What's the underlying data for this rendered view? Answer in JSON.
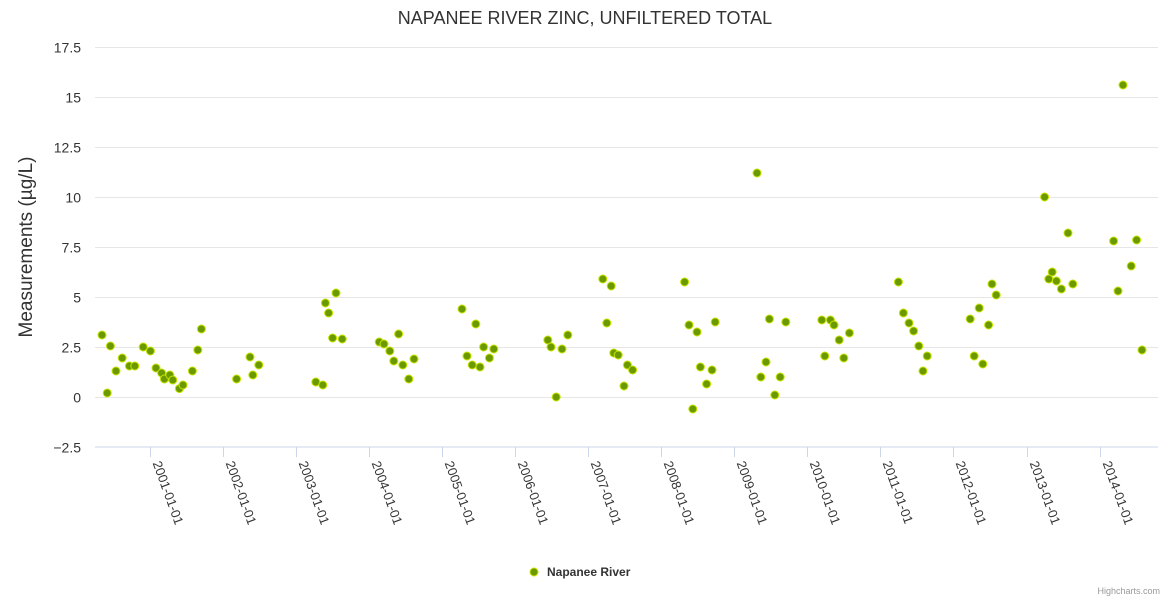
{
  "chart_data": {
    "type": "scatter",
    "title": "NAPANEE RIVER ZINC, UNFILTERED TOTAL",
    "xlabel": "",
    "ylabel": "Measurements (µg/L)",
    "ylim": [
      -2.5,
      17.5
    ],
    "yticks": [
      "−2.5",
      "0",
      "2.5",
      "5",
      "7.5",
      "10",
      "12.5",
      "15",
      "17.5"
    ],
    "ytick_values": [
      -2.5,
      0,
      2.5,
      5,
      7.5,
      10,
      12.5,
      15,
      17.5
    ],
    "xlim": [
      "2000-04-01",
      "2014-10-20"
    ],
    "xticks": [
      "2001-01-01",
      "2002-01-01",
      "2003-01-01",
      "2004-01-01",
      "2005-01-01",
      "2006-01-01",
      "2007-01-01",
      "2008-01-01",
      "2009-01-01",
      "2010-01-01",
      "2011-01-01",
      "2012-01-01",
      "2013-01-01",
      "2014-01-01"
    ],
    "grid": true,
    "legend_position": "bottom-center",
    "color": "#6a9a00",
    "outline_color": "#c8e400",
    "series": [
      {
        "name": "Napanee River",
        "points": [
          [
            "2000-05-06",
            3.1
          ],
          [
            "2000-06-01",
            0.2
          ],
          [
            "2000-06-17",
            2.55
          ],
          [
            "2000-07-15",
            1.3
          ],
          [
            "2000-08-15",
            1.95
          ],
          [
            "2000-09-20",
            1.55
          ],
          [
            "2000-10-17",
            1.55
          ],
          [
            "2000-11-28",
            2.5
          ],
          [
            "2001-01-03",
            2.3
          ],
          [
            "2001-01-31",
            1.45
          ],
          [
            "2001-02-28",
            1.2
          ],
          [
            "2001-03-14",
            0.9
          ],
          [
            "2001-04-10",
            1.1
          ],
          [
            "2001-04-25",
            0.85
          ],
          [
            "2001-05-28",
            0.42
          ],
          [
            "2001-06-15",
            0.6
          ],
          [
            "2001-08-01",
            1.3
          ],
          [
            "2001-08-28",
            2.35
          ],
          [
            "2001-09-15",
            3.4
          ],
          [
            "2002-03-10",
            0.9
          ],
          [
            "2002-05-16",
            2.0
          ],
          [
            "2002-05-30",
            1.1
          ],
          [
            "2002-06-29",
            1.6
          ],
          [
            "2003-04-10",
            0.75
          ],
          [
            "2003-05-15",
            0.6
          ],
          [
            "2003-05-28",
            4.7
          ],
          [
            "2003-06-13",
            4.2
          ],
          [
            "2003-07-03",
            2.95
          ],
          [
            "2003-07-20",
            5.2
          ],
          [
            "2003-08-20",
            2.9
          ],
          [
            "2004-02-21",
            2.75
          ],
          [
            "2004-03-16",
            2.65
          ],
          [
            "2004-04-14",
            2.3
          ],
          [
            "2004-05-04",
            1.8
          ],
          [
            "2004-05-28",
            3.15
          ],
          [
            "2004-06-18",
            1.6
          ],
          [
            "2004-07-18",
            0.9
          ],
          [
            "2004-08-13",
            1.9
          ],
          [
            "2005-04-10",
            4.4
          ],
          [
            "2005-05-05",
            2.05
          ],
          [
            "2005-05-31",
            1.6
          ],
          [
            "2005-06-18",
            3.65
          ],
          [
            "2005-07-09",
            1.5
          ],
          [
            "2005-07-27",
            2.5
          ],
          [
            "2005-08-25",
            1.95
          ],
          [
            "2005-09-16",
            2.4
          ],
          [
            "2006-06-13",
            2.85
          ],
          [
            "2006-06-29",
            2.5
          ],
          [
            "2006-07-25",
            0.0
          ],
          [
            "2006-08-23",
            2.4
          ],
          [
            "2006-09-21",
            3.1
          ],
          [
            "2007-03-15",
            5.9
          ],
          [
            "2007-04-04",
            3.7
          ],
          [
            "2007-04-26",
            5.55
          ],
          [
            "2007-05-09",
            2.2
          ],
          [
            "2007-05-31",
            2.1
          ],
          [
            "2007-06-29",
            0.55
          ],
          [
            "2007-07-16",
            1.6
          ],
          [
            "2007-08-11",
            1.35
          ],
          [
            "2008-04-27",
            5.75
          ],
          [
            "2008-05-19",
            3.6
          ],
          [
            "2008-06-07",
            -0.6
          ],
          [
            "2008-06-28",
            3.25
          ],
          [
            "2008-07-15",
            1.5
          ],
          [
            "2008-08-15",
            0.65
          ],
          [
            "2008-09-11",
            1.35
          ],
          [
            "2008-09-27",
            3.75
          ],
          [
            "2009-04-24",
            11.2
          ],
          [
            "2009-05-13",
            1.0
          ],
          [
            "2009-06-08",
            1.75
          ],
          [
            "2009-06-25",
            3.9
          ],
          [
            "2009-07-22",
            0.1
          ],
          [
            "2009-08-18",
            1.0
          ],
          [
            "2009-09-15",
            3.75
          ],
          [
            "2010-03-14",
            3.85
          ],
          [
            "2010-03-29",
            2.05
          ],
          [
            "2010-04-26",
            3.85
          ],
          [
            "2010-05-14",
            3.6
          ],
          [
            "2010-06-09",
            2.85
          ],
          [
            "2010-07-02",
            1.95
          ],
          [
            "2010-07-30",
            3.2
          ],
          [
            "2011-04-01",
            5.75
          ],
          [
            "2011-04-26",
            4.2
          ],
          [
            "2011-05-24",
            3.7
          ],
          [
            "2011-06-16",
            3.3
          ],
          [
            "2011-07-12",
            2.55
          ],
          [
            "2011-08-02",
            1.3
          ],
          [
            "2011-08-23",
            2.05
          ],
          [
            "2012-03-25",
            3.9
          ],
          [
            "2012-04-14",
            2.05
          ],
          [
            "2012-05-09",
            4.45
          ],
          [
            "2012-05-27",
            1.65
          ],
          [
            "2012-06-25",
            3.6
          ],
          [
            "2012-07-12",
            5.65
          ],
          [
            "2012-08-02",
            5.1
          ],
          [
            "2013-04-01",
            10.0
          ],
          [
            "2013-04-22",
            5.9
          ],
          [
            "2013-05-09",
            6.25
          ],
          [
            "2013-05-30",
            5.8
          ],
          [
            "2013-06-24",
            5.4
          ],
          [
            "2013-07-27",
            8.2
          ],
          [
            "2013-08-20",
            5.65
          ],
          [
            "2014-03-12",
            7.8
          ],
          [
            "2014-04-03",
            5.3
          ],
          [
            "2014-04-28",
            15.6
          ],
          [
            "2014-06-08",
            6.55
          ],
          [
            "2014-07-05",
            7.85
          ],
          [
            "2014-08-01",
            2.35
          ]
        ]
      }
    ]
  },
  "credits": "Highcharts.com"
}
